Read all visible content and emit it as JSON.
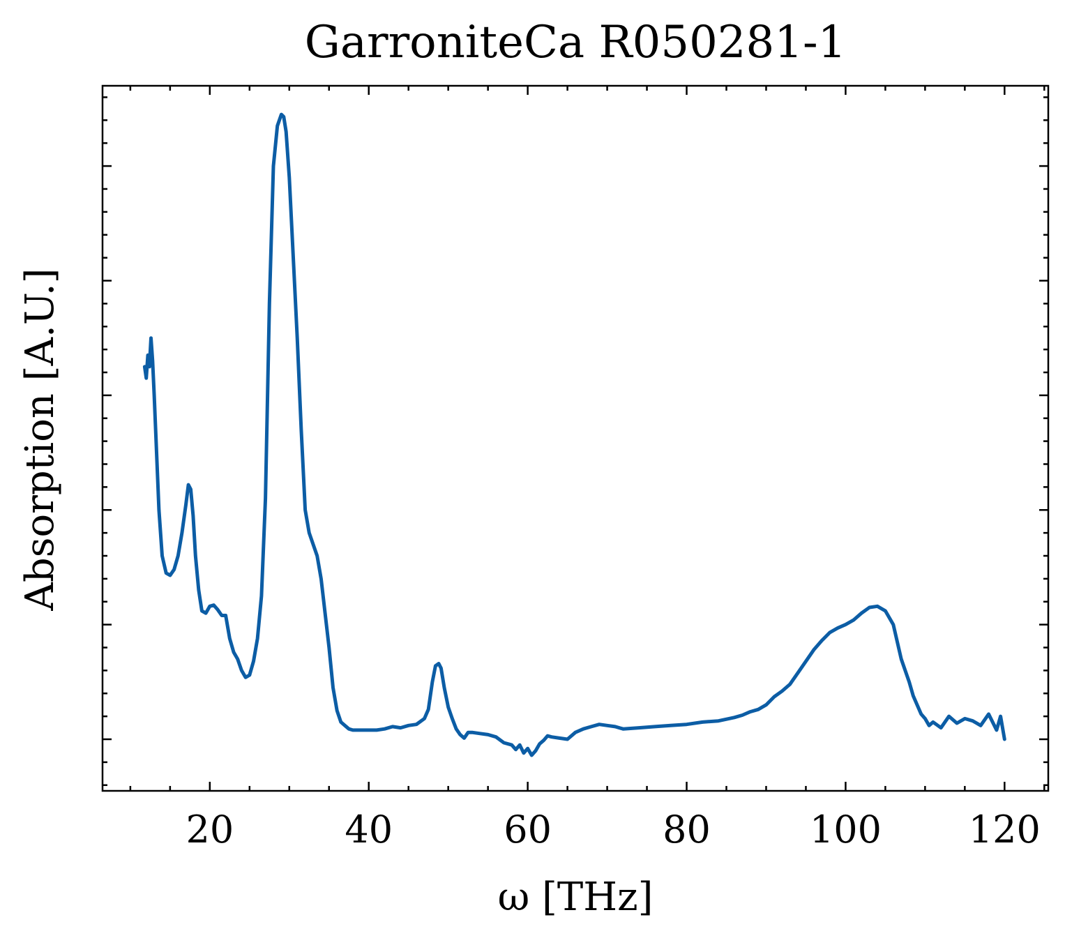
{
  "chart_data": {
    "type": "line",
    "title": "GarroniteCa R050281-1",
    "xlabel": "ω [THz]",
    "ylabel": "Absorption [A.U.]",
    "xlim": [
      6.5,
      125.5
    ],
    "ylim": [
      -0.045,
      0.57
    ],
    "xticks": [
      20,
      40,
      60,
      80,
      100,
      120
    ],
    "xtick_labels": [
      "20",
      "40",
      "60",
      "80",
      "100",
      "120"
    ],
    "yticks": [
      0.0,
      0.1,
      0.2,
      0.3,
      0.4,
      0.5
    ],
    "ytick_labels": [],
    "x_minor_step": 5,
    "y_minor_step": 0.02,
    "grid": false,
    "color": "#0C5DA5",
    "series": [
      {
        "x": [
          11.8,
          12.0,
          12.2,
          12.4,
          12.6,
          12.8,
          13.0,
          13.3,
          13.6,
          14.0,
          14.5,
          15.0,
          15.5,
          16.0,
          16.5,
          17.0,
          17.3,
          17.6,
          17.9,
          18.2,
          18.6,
          19.0,
          19.5,
          20.0,
          20.5,
          21.0,
          21.5,
          22.0,
          22.5,
          23.0,
          23.5,
          24.0,
          24.5,
          25.0,
          25.5,
          26.0,
          26.5,
          27.0,
          27.5,
          28.0,
          28.5,
          29.0,
          29.3,
          29.6,
          30.0,
          30.5,
          31.0,
          31.5,
          32.0,
          32.5,
          33.0,
          33.5,
          34.0,
          34.5,
          35.0,
          35.5,
          36.0,
          36.5,
          37.0,
          37.5,
          38.0,
          39.0,
          40.0,
          41.0,
          42.0,
          43.0,
          44.0,
          45.0,
          46.0,
          47.0,
          47.5,
          48.0,
          48.4,
          48.8,
          49.1,
          49.5,
          50.0,
          50.5,
          51.0,
          51.5,
          52.0,
          52.5,
          53.0,
          54.0,
          55.0,
          56.0,
          57.0,
          58.0,
          58.5,
          59.0,
          59.5,
          60.0,
          60.5,
          61.0,
          61.5,
          62.0,
          62.5,
          63.0,
          64.0,
          65.0,
          66.0,
          67.0,
          68.0,
          69.0,
          70.0,
          71.0,
          72.0,
          74.0,
          76.0,
          78.0,
          80.0,
          82.0,
          84.0,
          86.0,
          87.0,
          88.0,
          89.0,
          90.0,
          91.0,
          92.0,
          93.0,
          94.0,
          95.0,
          96.0,
          97.0,
          98.0,
          99.0,
          100.0,
          101.0,
          102.0,
          103.0,
          104.0,
          105.0,
          106.0,
          106.5,
          107.0,
          107.5,
          108.0,
          108.5,
          109.0,
          109.5,
          110.0,
          110.5,
          111.0,
          112.0,
          113.0,
          114.0,
          115.0,
          116.0,
          117.0,
          118.0,
          119.0,
          119.5,
          120.0
        ],
        "y": [
          0.325,
          0.315,
          0.335,
          0.325,
          0.35,
          0.33,
          0.3,
          0.25,
          0.2,
          0.16,
          0.145,
          0.143,
          0.148,
          0.16,
          0.18,
          0.205,
          0.222,
          0.218,
          0.195,
          0.16,
          0.13,
          0.112,
          0.11,
          0.116,
          0.117,
          0.113,
          0.108,
          0.108,
          0.088,
          0.076,
          0.07,
          0.06,
          0.054,
          0.056,
          0.068,
          0.088,
          0.125,
          0.21,
          0.38,
          0.5,
          0.535,
          0.545,
          0.543,
          0.53,
          0.49,
          0.42,
          0.35,
          0.27,
          0.2,
          0.18,
          0.17,
          0.16,
          0.14,
          0.11,
          0.08,
          0.045,
          0.025,
          0.015,
          0.012,
          0.009,
          0.008,
          0.008,
          0.008,
          0.008,
          0.009,
          0.011,
          0.01,
          0.012,
          0.013,
          0.018,
          0.026,
          0.05,
          0.064,
          0.066,
          0.062,
          0.045,
          0.028,
          0.018,
          0.009,
          0.004,
          0.001,
          0.006,
          0.006,
          0.005,
          0.004,
          0.002,
          -0.003,
          -0.005,
          -0.009,
          -0.005,
          -0.012,
          -0.008,
          -0.014,
          -0.01,
          -0.004,
          -0.001,
          0.003,
          0.002,
          0.001,
          0.0,
          0.006,
          0.009,
          0.011,
          0.013,
          0.012,
          0.011,
          0.009,
          0.01,
          0.011,
          0.012,
          0.013,
          0.015,
          0.016,
          0.019,
          0.021,
          0.024,
          0.026,
          0.03,
          0.037,
          0.042,
          0.048,
          0.058,
          0.068,
          0.078,
          0.086,
          0.093,
          0.097,
          0.1,
          0.104,
          0.11,
          0.115,
          0.116,
          0.112,
          0.1,
          0.085,
          0.07,
          0.06,
          0.05,
          0.038,
          0.03,
          0.022,
          0.018,
          0.012,
          0.015,
          0.01,
          0.02,
          0.014,
          0.018,
          0.016,
          0.012,
          0.022,
          0.008,
          0.02,
          0.0
        ]
      }
    ]
  }
}
